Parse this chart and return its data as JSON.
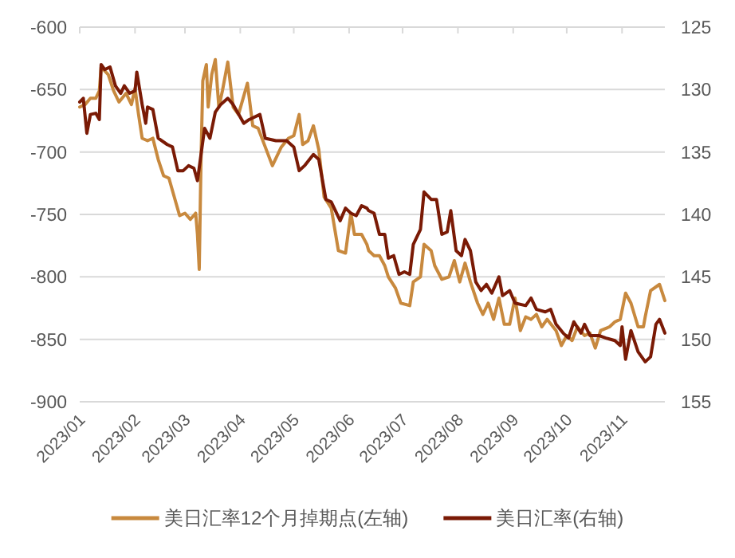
{
  "chart_data": {
    "type": "line",
    "xlim": [
      "2023-01-01",
      "2023-11-25"
    ],
    "xticks": [
      {
        "value": "2023-01-01",
        "label": "2023/01"
      },
      {
        "value": "2023-02-01",
        "label": "2023/02"
      },
      {
        "value": "2023-03-01",
        "label": "2023/03"
      },
      {
        "value": "2023-04-01",
        "label": "2023/04"
      },
      {
        "value": "2023-05-01",
        "label": "2023/05"
      },
      {
        "value": "2023-06-01",
        "label": "2023/06"
      },
      {
        "value": "2023-07-01",
        "label": "2023/07"
      },
      {
        "value": "2023-08-01",
        "label": "2023/08"
      },
      {
        "value": "2023-09-01",
        "label": "2023/09"
      },
      {
        "value": "2023-10-01",
        "label": "2023/10"
      },
      {
        "value": "2023-11-01",
        "label": "2023/11"
      }
    ],
    "ylim": [
      -900,
      -600
    ],
    "yticks": [
      -900,
      -850,
      -800,
      -750,
      -700,
      -650,
      -600
    ],
    "y2lim": [
      155,
      125
    ],
    "y2ticks": [
      155,
      150,
      145,
      140,
      135,
      130,
      125
    ],
    "grid": "y",
    "legend": "bottom",
    "marker": "none",
    "line_style": "solid",
    "series": [
      {
        "name": "美日汇率12个月掉期点(左轴)",
        "color": "#c8893e",
        "x": [
          "2023-01-01",
          "2023-01-04",
          "2023-01-07",
          "2023-01-10",
          "2023-01-12",
          "2023-01-13",
          "2023-01-17",
          "2023-01-20",
          "2023-01-23",
          "2023-01-27",
          "2023-01-30",
          "2023-02-01",
          "2023-02-03",
          "2023-02-05",
          "2023-02-08",
          "2023-02-11",
          "2023-02-14",
          "2023-02-17",
          "2023-02-20",
          "2023-02-23",
          "2023-02-26",
          "2023-03-01",
          "2023-03-04",
          "2023-03-07",
          "2023-03-08",
          "2023-03-09",
          "2023-03-10",
          "2023-03-11",
          "2023-03-13",
          "2023-03-14",
          "2023-03-16",
          "2023-03-18",
          "2023-03-20",
          "2023-03-22",
          "2023-03-25",
          "2023-03-28",
          "2023-03-31",
          "2023-04-05",
          "2023-04-08",
          "2023-04-11",
          "2023-04-15",
          "2023-04-19",
          "2023-04-24",
          "2023-04-28",
          "2023-05-01",
          "2023-05-04",
          "2023-05-06",
          "2023-05-09",
          "2023-05-12",
          "2023-05-15",
          "2023-05-18",
          "2023-05-22",
          "2023-05-26",
          "2023-05-30",
          "2023-06-02",
          "2023-06-04",
          "2023-06-08",
          "2023-06-11",
          "2023-06-12",
          "2023-06-15",
          "2023-06-18",
          "2023-06-21",
          "2023-06-23",
          "2023-06-27",
          "2023-06-30",
          "2023-07-05",
          "2023-07-07",
          "2023-07-11",
          "2023-07-13",
          "2023-07-17",
          "2023-07-19",
          "2023-07-23",
          "2023-07-27",
          "2023-07-30",
          "2023-08-02",
          "2023-08-05",
          "2023-08-08",
          "2023-08-12",
          "2023-08-15",
          "2023-08-18",
          "2023-08-21",
          "2023-08-24",
          "2023-08-27",
          "2023-08-30",
          "2023-09-02",
          "2023-09-05",
          "2023-09-08",
          "2023-09-11",
          "2023-09-14",
          "2023-09-17",
          "2023-09-20",
          "2023-09-25",
          "2023-09-28",
          "2023-10-01",
          "2023-10-04",
          "2023-10-07",
          "2023-10-11",
          "2023-10-14",
          "2023-10-17",
          "2023-10-20",
          "2023-10-25",
          "2023-10-28",
          "2023-10-31",
          "2023-11-03",
          "2023-11-06",
          "2023-11-10",
          "2023-11-13",
          "2023-11-14",
          "2023-11-17",
          "2023-11-22",
          "2023-11-25"
        ],
        "values": [
          -664,
          -662,
          -657,
          -657,
          -651,
          -632,
          -638,
          -651,
          -660,
          -653,
          -662,
          -649,
          -670,
          -689,
          -691,
          -689,
          -706,
          -719,
          -721,
          -736,
          -751,
          -749,
          -754,
          -749,
          -766,
          -794,
          -706,
          -643,
          -630,
          -664,
          -638,
          -626,
          -664,
          -651,
          -628,
          -664,
          -670,
          -645,
          -679,
          -681,
          -696,
          -711,
          -696,
          -689,
          -687,
          -670,
          -694,
          -691,
          -679,
          -698,
          -736,
          -745,
          -779,
          -781,
          -749,
          -766,
          -766,
          -774,
          -779,
          -783,
          -783,
          -791,
          -800,
          -809,
          -821,
          -823,
          -804,
          -800,
          -774,
          -779,
          -791,
          -802,
          -800,
          -787,
          -804,
          -789,
          -804,
          -821,
          -830,
          -821,
          -834,
          -817,
          -838,
          -838,
          -817,
          -843,
          -832,
          -834,
          -830,
          -840,
          -834,
          -843,
          -855,
          -847,
          -851,
          -840,
          -847,
          -845,
          -857,
          -843,
          -840,
          -836,
          -834,
          -813,
          -821,
          -840,
          -840,
          -832,
          -811,
          -806,
          -819
        ]
      },
      {
        "name": "美日汇率(右轴)",
        "color": "#7a1a05",
        "axis": "y2",
        "x": [
          "2023-01-01",
          "2023-01-03",
          "2023-01-05",
          "2023-01-07",
          "2023-01-10",
          "2023-01-12",
          "2023-01-13",
          "2023-01-15",
          "2023-01-18",
          "2023-01-21",
          "2023-01-24",
          "2023-01-26",
          "2023-01-29",
          "2023-02-01",
          "2023-02-02",
          "2023-02-05",
          "2023-02-07",
          "2023-02-08",
          "2023-02-11",
          "2023-02-14",
          "2023-02-19",
          "2023-02-22",
          "2023-02-25",
          "2023-02-28",
          "2023-03-03",
          "2023-03-06",
          "2023-03-08",
          "2023-03-10",
          "2023-03-12",
          "2023-03-15",
          "2023-03-18",
          "2023-03-21",
          "2023-03-25",
          "2023-03-28",
          "2023-04-03",
          "2023-04-06",
          "2023-04-12",
          "2023-04-15",
          "2023-04-21",
          "2023-04-27",
          "2023-05-01",
          "2023-05-04",
          "2023-05-07",
          "2023-05-12",
          "2023-05-15",
          "2023-05-19",
          "2023-05-22",
          "2023-05-27",
          "2023-05-30",
          "2023-06-02",
          "2023-06-05",
          "2023-06-08",
          "2023-06-11",
          "2023-06-12",
          "2023-06-15",
          "2023-06-18",
          "2023-06-21",
          "2023-06-23",
          "2023-06-26",
          "2023-06-29",
          "2023-07-02",
          "2023-07-05",
          "2023-07-07",
          "2023-07-11",
          "2023-07-13",
          "2023-07-17",
          "2023-07-20",
          "2023-07-23",
          "2023-07-26",
          "2023-07-28",
          "2023-07-31",
          "2023-08-03",
          "2023-08-05",
          "2023-08-08",
          "2023-08-11",
          "2023-08-14",
          "2023-08-17",
          "2023-08-20",
          "2023-08-24",
          "2023-08-26",
          "2023-08-30",
          "2023-09-02",
          "2023-09-08",
          "2023-09-11",
          "2023-09-14",
          "2023-09-19",
          "2023-09-22",
          "2023-09-25",
          "2023-09-29",
          "2023-10-02",
          "2023-10-05",
          "2023-10-09",
          "2023-10-11",
          "2023-10-14",
          "2023-10-19",
          "2023-10-23",
          "2023-10-28",
          "2023-10-31",
          "2023-11-01",
          "2023-11-03",
          "2023-11-06",
          "2023-11-10",
          "2023-11-14",
          "2023-11-17",
          "2023-11-20",
          "2023-11-22",
          "2023-11-25"
        ],
        "values": [
          131.0,
          130.7,
          133.5,
          132.0,
          131.9,
          132.4,
          128.0,
          128.4,
          128.2,
          129.7,
          130.3,
          129.7,
          130.3,
          130.1,
          128.6,
          131.2,
          132.7,
          131.4,
          131.6,
          133.9,
          134.4,
          134.6,
          136.5,
          136.5,
          136.1,
          136.3,
          137.3,
          135.2,
          133.1,
          133.9,
          131.8,
          131.2,
          130.7,
          131.2,
          132.7,
          132.4,
          132.0,
          133.9,
          134.1,
          134.1,
          134.6,
          136.5,
          136.1,
          135.2,
          135.6,
          138.8,
          139.0,
          140.5,
          139.5,
          139.9,
          140.1,
          139.3,
          139.5,
          139.7,
          139.9,
          141.6,
          141.6,
          143.5,
          143.3,
          144.8,
          144.6,
          144.8,
          142.4,
          141.2,
          138.2,
          138.8,
          138.8,
          141.6,
          141.4,
          139.7,
          142.9,
          143.3,
          142.0,
          142.9,
          145.4,
          146.1,
          145.6,
          146.3,
          145.0,
          146.5,
          146.1,
          147.1,
          147.3,
          146.7,
          147.6,
          147.8,
          147.6,
          148.8,
          149.5,
          149.9,
          148.6,
          149.5,
          148.8,
          149.7,
          149.7,
          149.9,
          150.1,
          150.5,
          149.0,
          151.6,
          149.3,
          151.0,
          151.8,
          151.4,
          148.8,
          148.4,
          149.5
        ]
      }
    ]
  }
}
